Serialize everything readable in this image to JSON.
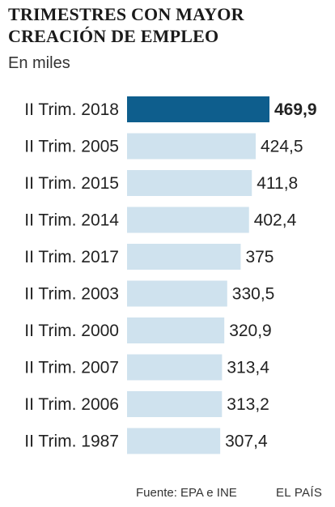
{
  "header": {
    "title": "TRIMESTRES CON MAYOR CREACIÓN DE EMPLEO",
    "subtitle": "En miles"
  },
  "footer": {
    "source": "Fuente: EPA e INE",
    "brand": "EL PAÍS"
  },
  "colors": {
    "highlight": "#0e5e8d",
    "bar": "#cfe2ee"
  },
  "chart_data": {
    "type": "bar",
    "orientation": "horizontal",
    "title": "TRIMESTRES CON MAYOR CREACIÓN DE EMPLEO",
    "subtitle": "En miles",
    "categories": [
      "II Trim. 2018",
      "II Trim. 2005",
      "II Trim. 2015",
      "II Trim. 2014",
      "II Trim. 2017",
      "II Trim. 2003",
      "II Trim. 2000",
      "II Trim. 2007",
      "II Trim. 2006",
      "II Trim. 1987"
    ],
    "values": [
      469.9,
      424.5,
      411.8,
      402.4,
      375,
      330.5,
      320.9,
      313.4,
      313.2,
      307.4
    ],
    "value_labels": [
      "469,9",
      "424,5",
      "411,8",
      "402,4",
      "375",
      "330,5",
      "320,9",
      "313,4",
      "313,2",
      "307,4"
    ],
    "highlight_index": 0,
    "xlim": [
      0,
      469.9
    ],
    "grid": false,
    "legend": "none"
  }
}
